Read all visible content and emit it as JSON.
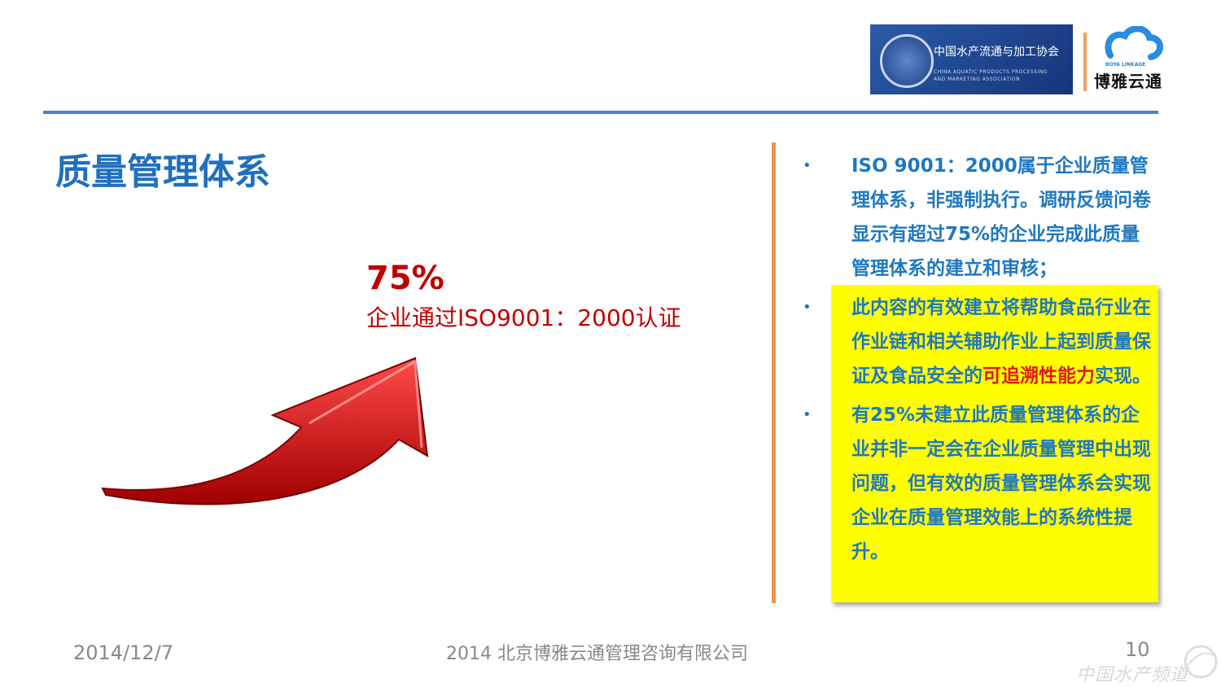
{
  "header": {
    "logo_association": {
      "cn": "中国水产流通与加工协会",
      "en_line1": "CHINA AQUATIC PRODUCTS PROCESSING",
      "en_line2": "AND MARKETING ASSOCIATION"
    },
    "logo_boya": {
      "en": "BOYA LINKAGE",
      "cn": "博雅云通"
    }
  },
  "title": "质量管理体系",
  "highlight": {
    "percent": "75%",
    "caption": "企业通过ISO9001：2000认证"
  },
  "colors": {
    "title": "#1f6fbf",
    "accent_red": "#c00000",
    "highlight_box": "#ffff00",
    "divider": "#f0944d",
    "rule": "#4f81bd"
  },
  "bullets": [
    {
      "text": "ISO 9001：2000属于企业质量管理体系，非强制执行。调研反馈问卷显示有超过75%的企业完成此质量管理体系的建立和审核；"
    },
    {
      "text_before": "此内容的有效建立将帮助食品行业在作业链和相关辅助作业上起到质量保证及食品安全的",
      "text_red": "可追溯性能力",
      "text_after": "实现。"
    },
    {
      "text": "有25%未建立此质量管理体系的企业并非一定会在企业质量管理中出现问题，但有效的质量管理体系会实现企业在质量管理效能上的系统性提升。"
    }
  ],
  "footer": {
    "date": "2014/12/7",
    "company": "2014 北京博雅云通管理咨询有限公司",
    "page": "10"
  },
  "watermark": "中国水产频道"
}
